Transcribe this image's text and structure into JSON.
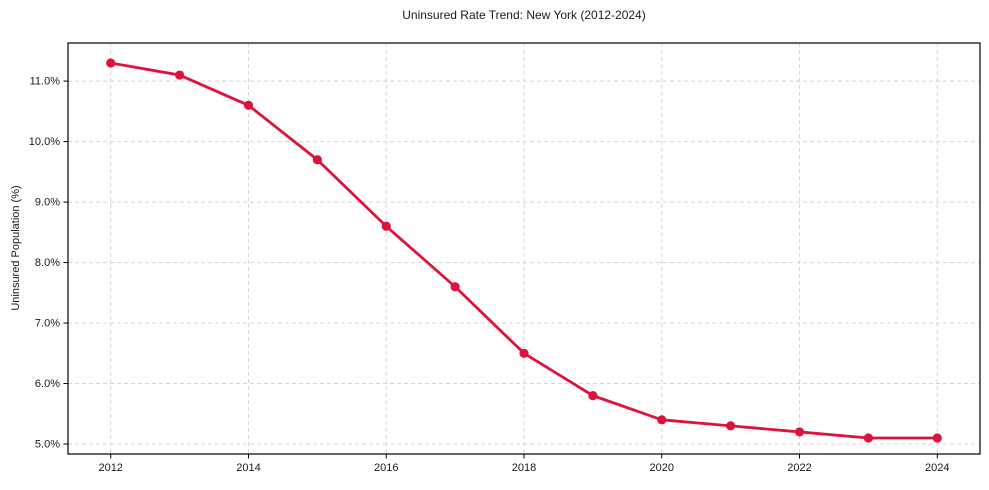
{
  "title": "Uninsured Rate Trend: New York (2012-2024)",
  "chart_data": {
    "type": "line",
    "title": "Uninsured Rate Trend: New York (2012-2024)",
    "xlabel": "",
    "ylabel": "Uninsured Population (%)",
    "x": [
      2012,
      2013,
      2014,
      2015,
      2016,
      2017,
      2018,
      2019,
      2020,
      2021,
      2022,
      2023,
      2024
    ],
    "y": [
      11.3,
      11.1,
      10.6,
      9.7,
      8.6,
      7.6,
      6.5,
      5.8,
      5.4,
      5.3,
      5.2,
      5.1,
      5.1
    ],
    "series_name": "Uninsured Rate",
    "xlim": [
      2011.38,
      2024.62
    ],
    "ylim": [
      4.835,
      11.63
    ],
    "x_ticks": [
      2012,
      2014,
      2016,
      2018,
      2020,
      2022,
      2024
    ],
    "y_ticks": [
      5.0,
      6.0,
      7.0,
      8.0,
      9.0,
      10.0,
      11.0
    ],
    "y_tick_suffix": "%",
    "y_tick_decimals": 1,
    "grid": true,
    "legend": "none",
    "line_color": "#DC143C",
    "marker": "circle",
    "marker_radius": 4.6,
    "line_width": 2.8,
    "grid_color": "#d4d4d4",
    "spine_color": "#000000",
    "tick_label_color": "#1a1a1a",
    "background_color": "#ffffff"
  }
}
